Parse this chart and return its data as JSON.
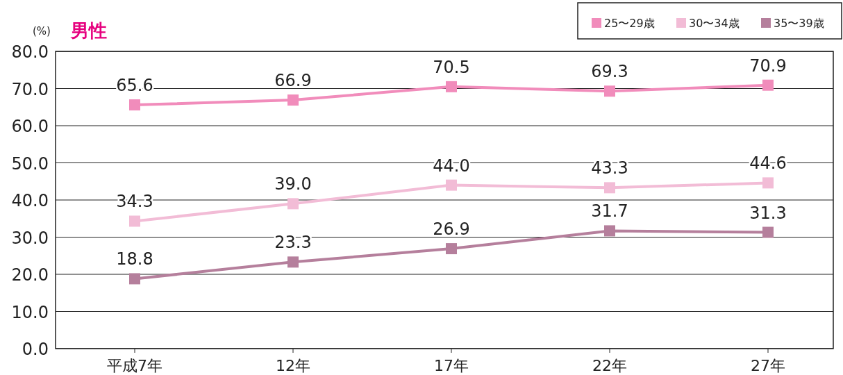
{
  "chart_data": {
    "type": "line",
    "title": "男性",
    "ylabel": "(%)",
    "categories": [
      "平成7年",
      "12年",
      "17年",
      "22年",
      "27年"
    ],
    "series": [
      {
        "name": "25〜29歳",
        "color": "#f18cbb",
        "values": [
          65.6,
          66.9,
          70.5,
          69.3,
          70.9
        ],
        "value_labels": [
          "65.6",
          "66.9",
          "70.5",
          "69.3",
          "70.9"
        ]
      },
      {
        "name": "30〜34歳",
        "color": "#f2bcd6",
        "values": [
          34.3,
          39.0,
          44.0,
          43.3,
          44.6
        ],
        "value_labels": [
          "34.3",
          "39.0",
          "44.0",
          "43.3",
          "44.6"
        ]
      },
      {
        "name": "35〜39歳",
        "color": "#b57f9c",
        "values": [
          18.8,
          23.3,
          26.9,
          31.7,
          31.3
        ],
        "value_labels": [
          "18.8",
          "23.3",
          "26.9",
          "31.7",
          "31.3"
        ]
      }
    ],
    "ylim": [
      0,
      80
    ],
    "yticks": [
      {
        "value": 0,
        "label": "0.0"
      },
      {
        "value": 10,
        "label": "10.0"
      },
      {
        "value": 20,
        "label": "20.0"
      },
      {
        "value": 30,
        "label": "30.0"
      },
      {
        "value": 40,
        "label": "40.0"
      },
      {
        "value": 50,
        "label": "50.0"
      },
      {
        "value": 60,
        "label": "60.0"
      },
      {
        "value": 70,
        "label": "70.0"
      },
      {
        "value": 80,
        "label": "80.0"
      }
    ],
    "grid": "y",
    "legend": "top right",
    "marker": "square",
    "line_style": "solid"
  }
}
